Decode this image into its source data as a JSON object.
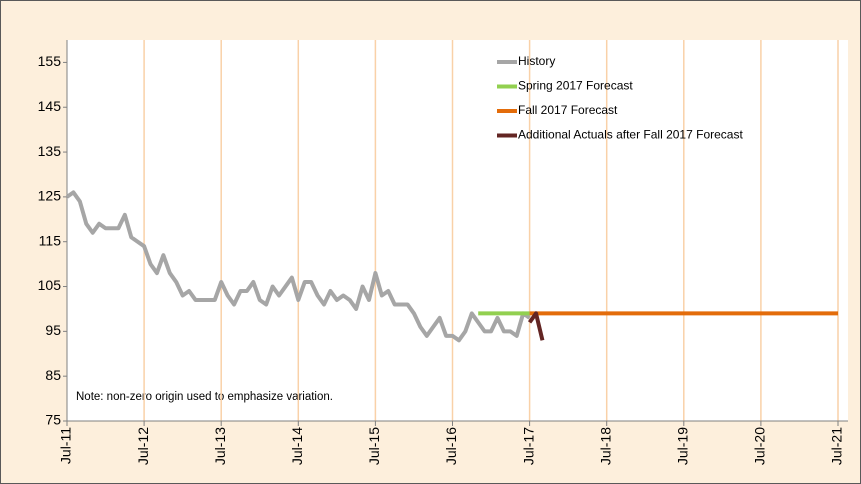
{
  "chart_data": {
    "type": "line",
    "series": [
      {
        "name": "History",
        "color": "#a6a6a6",
        "x": [
          "2011-07",
          "2011-08",
          "2011-09",
          "2011-10",
          "2011-11",
          "2011-12",
          "2012-01",
          "2012-02",
          "2012-03",
          "2012-04",
          "2012-05",
          "2012-06",
          "2012-07",
          "2012-08",
          "2012-09",
          "2012-10",
          "2012-11",
          "2012-12",
          "2013-01",
          "2013-02",
          "2013-03",
          "2013-04",
          "2013-05",
          "2013-06",
          "2013-07",
          "2013-08",
          "2013-09",
          "2013-10",
          "2013-11",
          "2013-12",
          "2014-01",
          "2014-02",
          "2014-03",
          "2014-04",
          "2014-05",
          "2014-06",
          "2014-07",
          "2014-08",
          "2014-09",
          "2014-10",
          "2014-11",
          "2014-12",
          "2015-01",
          "2015-02",
          "2015-03",
          "2015-04",
          "2015-05",
          "2015-06",
          "2015-07",
          "2015-08",
          "2015-09",
          "2015-10",
          "2015-11",
          "2015-12",
          "2016-01",
          "2016-02",
          "2016-03",
          "2016-04",
          "2016-05",
          "2016-06",
          "2016-07",
          "2016-08",
          "2016-09",
          "2016-10",
          "2016-11",
          "2016-12",
          "2017-01",
          "2017-02",
          "2017-03",
          "2017-04",
          "2017-05",
          "2017-06",
          "2017-07"
        ],
        "values": [
          125,
          126,
          124,
          119,
          117,
          119,
          118,
          118,
          118,
          121,
          116,
          115,
          114,
          110,
          108,
          112,
          108,
          106,
          103,
          104,
          102,
          102,
          102,
          102,
          106,
          103,
          101,
          104,
          104,
          106,
          102,
          101,
          105,
          103,
          105,
          107,
          102,
          106,
          106,
          103,
          101,
          104,
          102,
          103,
          102,
          100,
          105,
          102,
          108,
          103,
          104,
          101,
          101,
          101,
          99,
          96,
          94,
          96,
          98,
          94,
          94,
          93,
          95,
          99,
          97,
          95,
          95,
          98,
          95,
          95,
          94,
          99,
          98
        ]
      },
      {
        "name": "Spring 2017 Forecast",
        "color": "#92d050",
        "x": [
          "2016-11",
          "2017-07"
        ],
        "values": [
          99,
          99
        ]
      },
      {
        "name": "Fall 2017 Forecast",
        "color": "#e36c0a",
        "x": [
          "2017-07",
          "2021-07"
        ],
        "values": [
          99,
          99
        ]
      },
      {
        "name": "Additional Actuals after Fall 2017 Forecast",
        "color": "#632523",
        "x": [
          "2017-07",
          "2017-08",
          "2017-09"
        ],
        "values": [
          97,
          99,
          93
        ]
      }
    ],
    "xlim": [
      "2011-07",
      "2021-07"
    ],
    "xticks": [
      {
        "value": "2011-07",
        "label": "Jul-11"
      },
      {
        "value": "2012-07",
        "label": "Jul-12"
      },
      {
        "value": "2013-07",
        "label": "Jul-13"
      },
      {
        "value": "2014-07",
        "label": "Jul-14"
      },
      {
        "value": "2015-07",
        "label": "Jul-15"
      },
      {
        "value": "2016-07",
        "label": "Jul-16"
      },
      {
        "value": "2017-07",
        "label": "Jul-17"
      },
      {
        "value": "2018-07",
        "label": "Jul-18"
      },
      {
        "value": "2019-07",
        "label": "Jul-19"
      },
      {
        "value": "2020-07",
        "label": "Jul-20"
      },
      {
        "value": "2021-07",
        "label": "Jul-21"
      }
    ],
    "ylim": [
      75,
      160
    ],
    "yticks": [
      75,
      85,
      95,
      105,
      115,
      125,
      135,
      145,
      155
    ],
    "grid": "x",
    "legend": "top-right",
    "annotation": "Note: non-zero origin used to emphasize variation."
  }
}
